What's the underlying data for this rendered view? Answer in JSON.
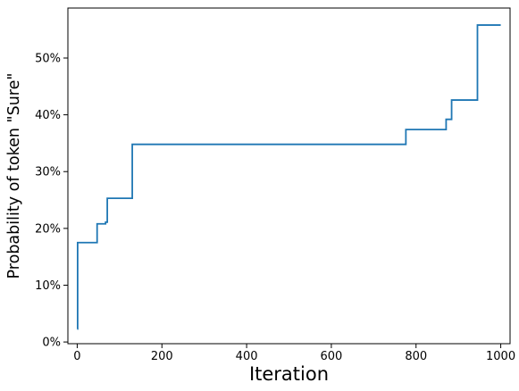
{
  "chart_data": {
    "type": "line",
    "title": "",
    "xlabel": "Iteration",
    "ylabel": "Probability of token \"Sure\"",
    "xlim": [
      -22,
      1022
    ],
    "ylim": [
      -0.003,
      0.588
    ],
    "x_ticks": [
      0,
      200,
      400,
      600,
      800,
      1000
    ],
    "x_tick_labels": [
      "0",
      "200",
      "400",
      "600",
      "800",
      "1000"
    ],
    "y_ticks": [
      0,
      0.1,
      0.2,
      0.3,
      0.4,
      0.5
    ],
    "y_tick_labels": [
      "0%",
      "10%",
      "20%",
      "30%",
      "40%",
      "50%"
    ],
    "grid": false,
    "legend": "none",
    "series": [
      {
        "color": "#1f77b4",
        "step": "post",
        "x": [
          0,
          1,
          47,
          55,
          67,
          71,
          127,
          130,
          773,
          776,
          871,
          875,
          881,
          884,
          941,
          945,
          1000
        ],
        "y": [
          0.023,
          0.175,
          0.208,
          0.208,
          0.211,
          0.253,
          0.253,
          0.348,
          0.348,
          0.374,
          0.392,
          0.392,
          0.392,
          0.426,
          0.426,
          0.558,
          0.558
        ]
      }
    ]
  }
}
